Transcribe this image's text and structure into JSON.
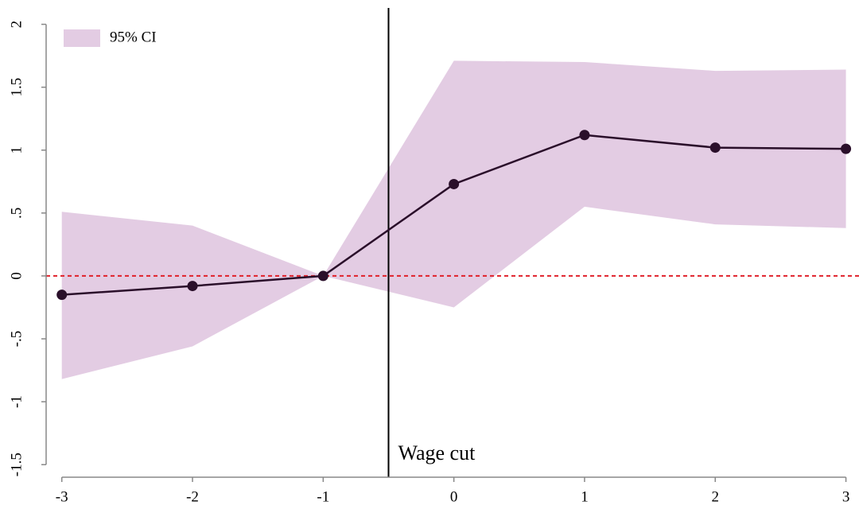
{
  "chart_data": {
    "type": "line",
    "x": [
      -3,
      -2,
      -1,
      0,
      1,
      2,
      3
    ],
    "values": [
      -0.15,
      -0.08,
      0,
      0.73,
      1.12,
      1.02,
      1.01
    ],
    "color": "#2a0f2a",
    "ci": {
      "name": "95% CI",
      "color": "#e3cce3",
      "lower": [
        -0.82,
        -0.56,
        0,
        -0.25,
        0.55,
        0.41,
        0.38
      ],
      "upper": [
        0.51,
        0.4,
        0,
        1.71,
        1.7,
        1.63,
        1.64
      ]
    },
    "reference_line": {
      "y": 0,
      "color": "#e0202a"
    },
    "event_line": {
      "x": -0.5,
      "label": "Wage cut",
      "color": "#000000"
    },
    "xlim": [
      -3.12,
      3.1
    ],
    "ylim": [
      -1.6,
      2.13
    ],
    "xticks": [
      -3,
      -2,
      -1,
      0,
      1,
      2,
      3
    ],
    "yticks": [
      -1.5,
      -1,
      {
        "value": -0.5,
        "label": "-.5"
      },
      0,
      {
        "value": 0.5,
        "label": ".5"
      },
      1,
      1.5,
      2
    ],
    "legend": "top-left"
  }
}
